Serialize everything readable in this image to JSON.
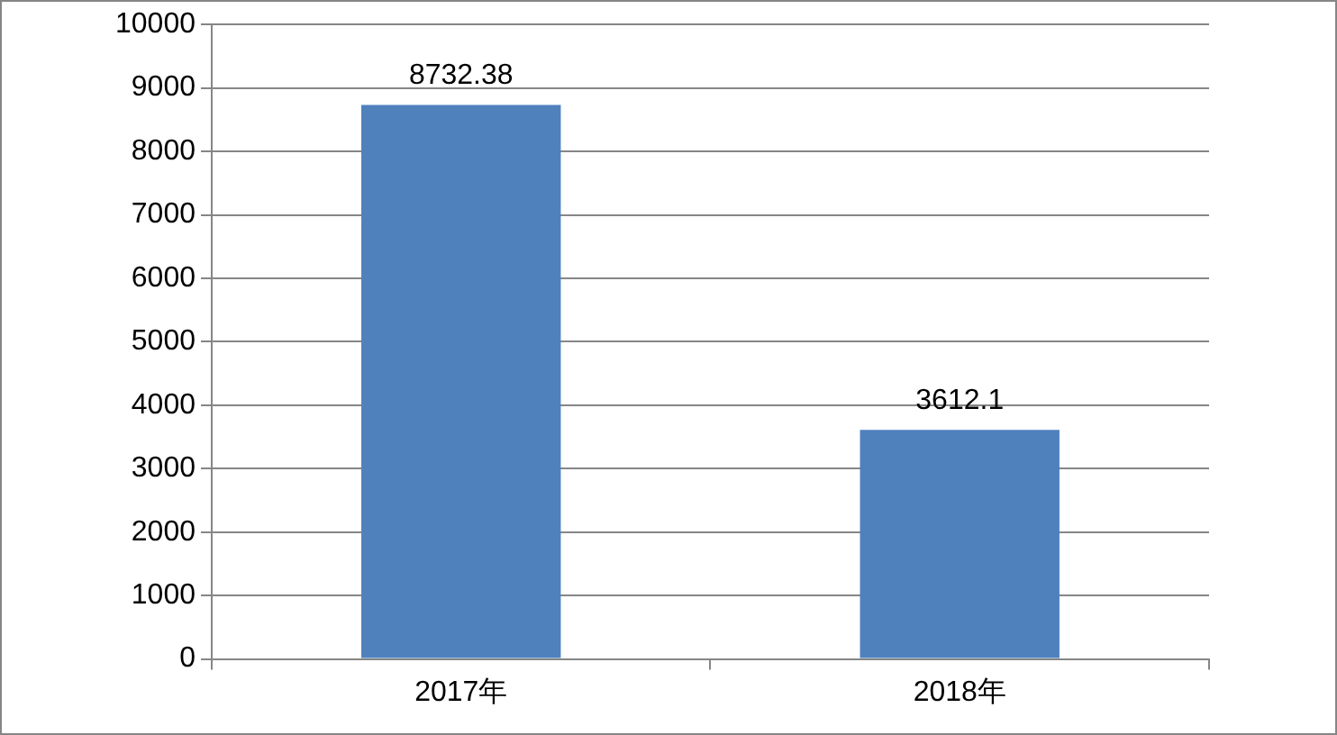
{
  "chart_data": {
    "type": "bar",
    "categories": [
      "2017年",
      "2018年"
    ],
    "values": [
      8732.38,
      3612.1
    ],
    "color": "#4f81bd",
    "ylim": [
      0,
      10000
    ],
    "yticks": [
      0,
      1000,
      2000,
      3000,
      4000,
      5000,
      6000,
      7000,
      8000,
      9000,
      10000
    ],
    "grid": "y",
    "data_labels": true,
    "legend": false
  }
}
